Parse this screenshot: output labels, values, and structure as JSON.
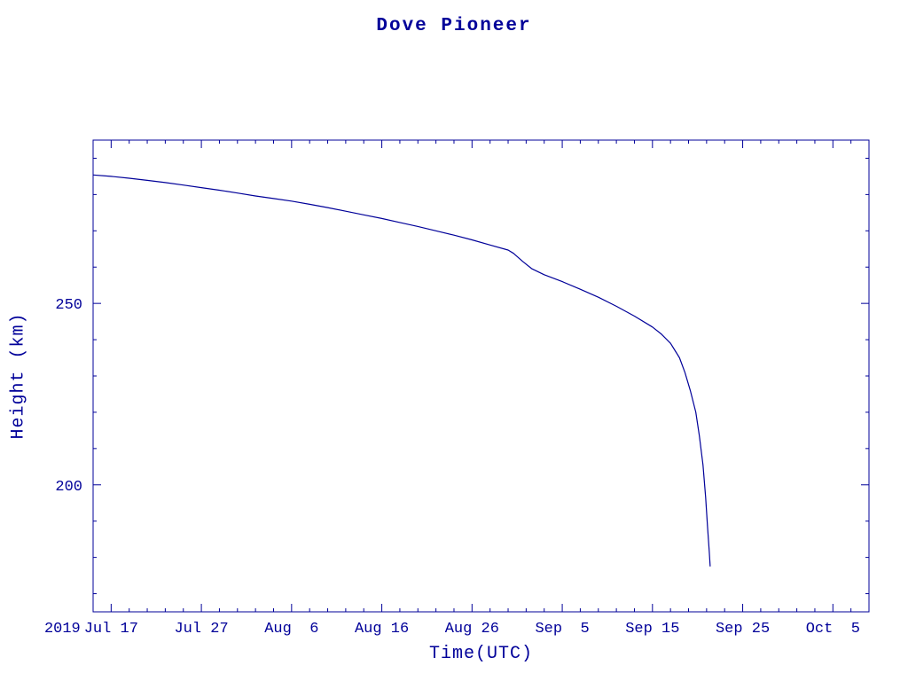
{
  "page": {
    "background_color": "#ffffff",
    "accent_color": "#000099"
  },
  "chart": {
    "title": "Dove Pioneer",
    "xlabel": "Time(UTC)",
    "ylabel": "Height (km)"
  },
  "chart_data": {
    "type": "line",
    "title": "Dove Pioneer",
    "xlabel": "Time(UTC)",
    "ylabel": "Height (km)",
    "line_color": "#000099",
    "x_unit": "days since 2019 Jul 17",
    "xlim": [
      -2,
      84
    ],
    "ylim": [
      165,
      295
    ],
    "year_label": "2019",
    "x_ticks": [
      {
        "day": 0,
        "label": "Jul 17"
      },
      {
        "day": 10,
        "label": "Jul 27"
      },
      {
        "day": 20,
        "label": "Aug  6"
      },
      {
        "day": 30,
        "label": "Aug 16"
      },
      {
        "day": 40,
        "label": "Aug 26"
      },
      {
        "day": 50,
        "label": "Sep  5"
      },
      {
        "day": 60,
        "label": "Sep 15"
      },
      {
        "day": 70,
        "label": "Sep 25"
      },
      {
        "day": 80,
        "label": "Oct  5"
      }
    ],
    "y_ticks": [
      {
        "value": 200,
        "label": "200"
      },
      {
        "value": 250,
        "label": "250"
      }
    ],
    "minor_x_step": 2,
    "minor_y_step": 10,
    "grid": false,
    "legend": false,
    "points": [
      [
        -2,
        285.4
      ],
      [
        0,
        285.0
      ],
      [
        2,
        284.5
      ],
      [
        4,
        283.9
      ],
      [
        6,
        283.3
      ],
      [
        8,
        282.6
      ],
      [
        10,
        281.9
      ],
      [
        12,
        281.2
      ],
      [
        14,
        280.4
      ],
      [
        16,
        279.6
      ],
      [
        18,
        278.9
      ],
      [
        20,
        278.2
      ],
      [
        22,
        277.3
      ],
      [
        24,
        276.4
      ],
      [
        26,
        275.4
      ],
      [
        28,
        274.4
      ],
      [
        30,
        273.4
      ],
      [
        32,
        272.3
      ],
      [
        34,
        271.2
      ],
      [
        36,
        270.0
      ],
      [
        38,
        268.8
      ],
      [
        40,
        267.5
      ],
      [
        42,
        266.1
      ],
      [
        44,
        264.7
      ],
      [
        44.6,
        263.8
      ],
      [
        45.6,
        261.6
      ],
      [
        46.6,
        259.6
      ],
      [
        48,
        257.9
      ],
      [
        50,
        256.0
      ],
      [
        52,
        253.9
      ],
      [
        54,
        251.7
      ],
      [
        56,
        249.2
      ],
      [
        58,
        246.5
      ],
      [
        60,
        243.5
      ],
      [
        61,
        241.5
      ],
      [
        62,
        239.0
      ],
      [
        62.6,
        236.6
      ],
      [
        63,
        235.0
      ],
      [
        63.6,
        231.0
      ],
      [
        64.2,
        226.0
      ],
      [
        64.8,
        220.0
      ],
      [
        65.2,
        213.5
      ],
      [
        65.6,
        205.5
      ],
      [
        65.9,
        196.5
      ],
      [
        66.1,
        188.5
      ],
      [
        66.3,
        181.5
      ],
      [
        66.4,
        177.5
      ]
    ]
  }
}
